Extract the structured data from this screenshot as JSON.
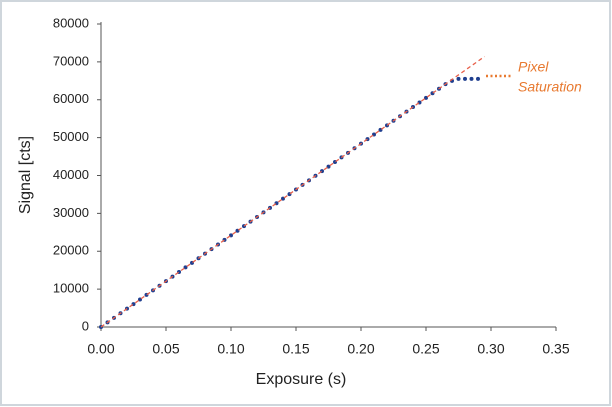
{
  "chart_data": {
    "type": "line",
    "x_label": "Exposure (s)",
    "y_label": "Signal [cts]",
    "xlim": [
      0,
      0.35
    ],
    "ylim": [
      0,
      80000
    ],
    "xticks": [
      {
        "value": 0,
        "label": "0.00"
      },
      {
        "value": 0.05,
        "label": "0.05"
      },
      {
        "value": 0.1,
        "label": "0.10"
      },
      {
        "value": 0.15,
        "label": "0.15"
      },
      {
        "value": 0.2,
        "label": "0.20"
      },
      {
        "value": 0.25,
        "label": "0.25"
      },
      {
        "value": 0.3,
        "label": "0.30"
      },
      {
        "value": 0.35,
        "label": "0.35"
      }
    ],
    "yticks": [
      0,
      10000,
      20000,
      30000,
      40000,
      50000,
      60000,
      70000,
      80000
    ],
    "series": [
      {
        "color": "#1f3f8f",
        "style": "markers",
        "x": [
          0,
          0.005,
          0.01,
          0.015,
          0.02,
          0.025,
          0.03,
          0.035,
          0.04,
          0.045,
          0.05,
          0.055,
          0.06,
          0.065,
          0.07,
          0.075,
          0.08,
          0.085,
          0.09,
          0.095,
          0.1,
          0.105,
          0.11,
          0.115,
          0.12,
          0.125,
          0.13,
          0.135,
          0.14,
          0.145,
          0.15,
          0.155,
          0.16,
          0.165,
          0.17,
          0.175,
          0.18,
          0.185,
          0.19,
          0.195,
          0.2,
          0.205,
          0.21,
          0.215,
          0.22,
          0.225,
          0.23,
          0.235,
          0.24,
          0.245,
          0.25,
          0.255,
          0.26,
          0.265,
          0.27,
          0.275,
          0.28,
          0.285,
          0.29
        ],
        "values": [
          0,
          1210,
          2420,
          3630,
          4840,
          6050,
          7260,
          8470,
          9680,
          10890,
          12100,
          13310,
          14520,
          15730,
          16940,
          18150,
          19360,
          20570,
          21780,
          22990,
          24200,
          25410,
          26620,
          27830,
          29040,
          30250,
          31460,
          32670,
          33880,
          35090,
          36300,
          37510,
          38720,
          39930,
          41140,
          42350,
          43560,
          44770,
          45980,
          47190,
          48400,
          49610,
          50820,
          52030,
          53240,
          54450,
          55660,
          56870,
          58080,
          59290,
          60500,
          61710,
          62920,
          64130,
          65000,
          65500,
          65500,
          65500,
          65500
        ]
      },
      {
        "color": "#e8604a",
        "style": "dashed",
        "x": [
          0,
          0.295
        ],
        "values": [
          0,
          71400
        ]
      }
    ],
    "annotation": {
      "lines": [
        "Pixel",
        "Saturation"
      ],
      "color": "#e8792f"
    }
  }
}
